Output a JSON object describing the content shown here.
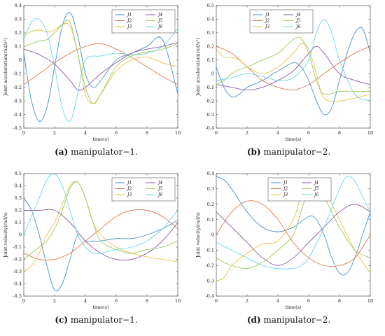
{
  "colors": {
    "J1": "#4a90c8",
    "J2": "#e07a4f",
    "J3": "#e8c24a",
    "J4": "#8e5aa8",
    "J5": "#9cc85a",
    "J6": "#6fd3ea"
  },
  "panels": [
    {
      "caption_tag": "(a)",
      "caption_text": "manipulator−1.",
      "chart_data": {
        "type": "line",
        "xlabel": "time(s)",
        "ylabel": "Joint acceleration(rad/s²)",
        "xlim": [
          0,
          10
        ],
        "ylim": [
          -0.5,
          0.4
        ],
        "xticks": [
          0,
          2,
          4,
          6,
          8,
          10
        ],
        "yticks": [
          0.4,
          0.3,
          0.2,
          0.1,
          0,
          -0.1,
          -0.2,
          -0.3,
          -0.4,
          -0.5
        ],
        "legend_position": "top-right",
        "series": [
          {
            "name": "J1",
            "x": [
              0,
              0.5,
              1,
              1.5,
              2,
              2.5,
              3,
              3.5,
              4,
              4.5,
              5,
              6,
              7,
              8,
              9,
              10
            ],
            "values": [
              0.05,
              -0.3,
              -0.45,
              -0.35,
              -0.05,
              0.25,
              0.35,
              0.18,
              -0.1,
              -0.2,
              -0.15,
              0.0,
              0.05,
              0.1,
              0.15,
              -0.25
            ]
          },
          {
            "name": "J2",
            "x": [
              0,
              1,
              2,
              3,
              4,
              5,
              6,
              7,
              8,
              9,
              10
            ],
            "values": [
              -0.18,
              -0.1,
              -0.02,
              0.05,
              0.1,
              0.12,
              0.08,
              0.02,
              -0.05,
              -0.12,
              -0.18
            ]
          },
          {
            "name": "J3",
            "x": [
              0,
              0.5,
              1,
              1.5,
              2,
              2.5,
              3,
              3.5,
              4,
              4.5,
              5,
              6,
              7,
              8,
              9,
              10
            ],
            "values": [
              0.18,
              0.21,
              0.22,
              0.21,
              0.22,
              0.26,
              0.25,
              0.05,
              -0.25,
              -0.32,
              -0.25,
              -0.08,
              0.0,
              0.02,
              -0.02,
              -0.05
            ]
          },
          {
            "name": "J4",
            "x": [
              0,
              1,
              2,
              3,
              3.5,
              4,
              5,
              6,
              7,
              8,
              9,
              10
            ],
            "values": [
              0.08,
              0.04,
              -0.03,
              -0.15,
              -0.22,
              -0.2,
              -0.1,
              -0.02,
              0.05,
              0.08,
              0.1,
              0.13
            ]
          },
          {
            "name": "J5",
            "x": [
              0,
              0.5,
              1,
              1.5,
              2,
              2.5,
              3,
              3.5,
              4,
              4.5,
              5,
              6,
              7,
              8,
              9,
              10
            ],
            "values": [
              0.1,
              0.12,
              0.14,
              0.15,
              0.2,
              0.26,
              0.28,
              0.05,
              -0.2,
              -0.32,
              -0.25,
              -0.05,
              0.03,
              0.06,
              0.08,
              0.12
            ]
          },
          {
            "name": "J6",
            "x": [
              0,
              0.5,
              1,
              1.5,
              2,
              2.5,
              3,
              3.5,
              4,
              5,
              6,
              7,
              8,
              9,
              10
            ],
            "values": [
              0.15,
              0.28,
              0.3,
              0.2,
              -0.05,
              -0.35,
              -0.45,
              -0.25,
              0.0,
              0.03,
              0.05,
              0.04,
              0.05,
              0.1,
              0.23
            ]
          }
        ]
      }
    },
    {
      "caption_tag": "(b)",
      "caption_text": "manipulator−2.",
      "chart_data": {
        "type": "line",
        "xlabel": "time(s)",
        "ylabel": "Joint acceleration(rad/s²)",
        "xlim": [
          0,
          10
        ],
        "ylim": [
          -0.4,
          0.5
        ],
        "xticks": [
          0,
          2,
          4,
          6,
          8,
          10
        ],
        "yticks": [
          0.5,
          0.4,
          0.3,
          0.2,
          0.1,
          0,
          -0.1,
          -0.2,
          -0.3,
          -0.4
        ],
        "legend_position": "top-left",
        "series": [
          {
            "name": "J1",
            "x": [
              0,
              0.5,
              1,
              1.5,
              2,
              3,
              4,
              5,
              5.5,
              6,
              6.5,
              7,
              7.5,
              8,
              8.5,
              9,
              9.5,
              10
            ],
            "values": [
              0.05,
              -0.1,
              -0.17,
              -0.15,
              -0.1,
              -0.05,
              0.02,
              0.08,
              0.05,
              -0.05,
              -0.2,
              -0.3,
              -0.25,
              -0.05,
              0.15,
              0.3,
              0.33,
              0.15
            ]
          },
          {
            "name": "J2",
            "x": [
              0,
              1,
              2,
              3,
              4,
              5,
              6,
              7,
              8,
              9,
              10
            ],
            "values": [
              0.2,
              0.15,
              0.05,
              -0.05,
              -0.1,
              -0.12,
              -0.08,
              0.0,
              0.08,
              0.15,
              0.2
            ]
          },
          {
            "name": "J3",
            "x": [
              0,
              0.5,
              1,
              1.5,
              2,
              3,
              4,
              5,
              5.5,
              6,
              6.5,
              7,
              8,
              9,
              10
            ],
            "values": [
              0.18,
              0.12,
              0.12,
              0.1,
              0.05,
              0.0,
              0.05,
              0.15,
              0.22,
              0.18,
              0.0,
              -0.18,
              -0.2,
              -0.18,
              -0.15
            ]
          },
          {
            "name": "J4",
            "x": [
              0,
              1,
              2,
              3,
              4,
              5,
              6,
              6.5,
              7,
              8,
              9,
              10
            ],
            "values": [
              -0.08,
              -0.1,
              -0.12,
              -0.1,
              -0.05,
              0.02,
              0.15,
              0.2,
              0.15,
              0.0,
              -0.05,
              -0.08
            ]
          },
          {
            "name": "J5",
            "x": [
              0,
              0.5,
              1,
              1.5,
              2,
              3,
              4,
              5,
              5.5,
              6,
              6.5,
              7,
              8,
              9,
              10
            ],
            "values": [
              -0.08,
              -0.05,
              0.0,
              0.03,
              0.05,
              0.1,
              0.15,
              0.25,
              0.26,
              0.15,
              -0.05,
              -0.15,
              -0.13,
              -0.13,
              -0.13
            ]
          },
          {
            "name": "J6",
            "x": [
              0,
              1,
              2,
              3,
              4,
              5,
              6,
              6.5,
              7,
              7.5,
              8,
              9,
              10
            ],
            "values": [
              -0.05,
              -0.03,
              0.0,
              -0.02,
              -0.05,
              -0.03,
              0.1,
              0.3,
              0.4,
              0.3,
              0.1,
              -0.15,
              -0.2
            ]
          }
        ]
      }
    },
    {
      "caption_tag": "(c)",
      "caption_text": "manipulator−1.",
      "chart_data": {
        "type": "line",
        "xlabel": "time(s)",
        "ylabel": "Joint velocity(rad/s)",
        "xlim": [
          0,
          10
        ],
        "ylim": [
          -0.5,
          0.5
        ],
        "xticks": [
          0,
          2,
          4,
          6,
          8,
          10
        ],
        "yticks": [
          0.5,
          0.4,
          0.3,
          0.2,
          0.1,
          0,
          -0.1,
          -0.2,
          -0.3,
          -0.4,
          -0.5
        ],
        "legend_position": "top-right",
        "series": [
          {
            "name": "J1",
            "x": [
              0,
              0.5,
              1,
              1.5,
              2,
              2.5,
              3,
              3.5,
              4,
              4.5,
              5,
              6,
              7,
              8,
              9,
              10
            ],
            "values": [
              0.3,
              0.2,
              0.0,
              -0.25,
              -0.45,
              -0.4,
              -0.2,
              0.0,
              -0.05,
              -0.05,
              -0.05,
              -0.03,
              -0.03,
              0.0,
              0.05,
              0.12
            ]
          },
          {
            "name": "J2",
            "x": [
              0,
              1,
              2,
              3,
              4,
              5,
              6,
              7,
              8,
              9,
              10
            ],
            "values": [
              -0.15,
              -0.2,
              -0.2,
              -0.15,
              -0.05,
              0.05,
              0.15,
              0.2,
              0.2,
              0.15,
              0.05
            ]
          },
          {
            "name": "J3",
            "x": [
              0,
              0.5,
              1,
              1.5,
              2,
              2.5,
              3,
              3.5,
              4,
              4.5,
              5,
              6,
              7,
              8,
              9,
              10
            ],
            "values": [
              -0.3,
              -0.25,
              -0.15,
              0.0,
              0.1,
              0.25,
              0.4,
              0.43,
              0.3,
              0.1,
              0.0,
              -0.1,
              -0.15,
              -0.18,
              -0.2,
              -0.22
            ]
          },
          {
            "name": "J4",
            "x": [
              0,
              1,
              2,
              3,
              4,
              5,
              6,
              7,
              8,
              9,
              10
            ],
            "values": [
              0.2,
              0.2,
              0.2,
              0.1,
              -0.05,
              -0.15,
              -0.2,
              -0.2,
              -0.15,
              -0.05,
              0.1
            ]
          },
          {
            "name": "J5",
            "x": [
              0,
              0.5,
              1,
              1.5,
              2,
              2.5,
              3,
              3.5,
              4,
              4.5,
              5,
              6,
              7,
              8,
              9,
              10
            ],
            "values": [
              -0.2,
              -0.15,
              -0.1,
              -0.05,
              0.05,
              0.2,
              0.38,
              0.43,
              0.3,
              0.1,
              -0.05,
              -0.12,
              -0.15,
              -0.12,
              -0.1,
              -0.05
            ]
          },
          {
            "name": "J6",
            "x": [
              0,
              0.5,
              1,
              1.5,
              2,
              2.5,
              3,
              3.5,
              4,
              4.5,
              5,
              6,
              7,
              8,
              9,
              10
            ],
            "values": [
              0.0,
              0.15,
              0.3,
              0.45,
              0.5,
              0.4,
              0.2,
              0.0,
              -0.1,
              -0.15,
              -0.15,
              -0.12,
              -0.1,
              -0.05,
              0.05,
              0.2
            ]
          }
        ]
      }
    },
    {
      "caption_tag": "(d)",
      "caption_text": "manipulator−2.",
      "chart_data": {
        "type": "line",
        "xlabel": "time(s)",
        "ylabel": "Joint velocity(rad/s)",
        "xlim": [
          0,
          10
        ],
        "ylim": [
          -0.4,
          0.4
        ],
        "xticks": [
          0,
          2,
          4,
          6,
          8,
          10
        ],
        "yticks": [
          0.4,
          0.3,
          0.2,
          0.1,
          0,
          -0.1,
          -0.2,
          -0.3,
          -0.4
        ],
        "legend_position": "top-center",
        "series": [
          {
            "name": "J1",
            "x": [
              0,
              0.5,
              1,
              2,
              3,
              4,
              5,
              6,
              6.5,
              7,
              7.5,
              8,
              8.5,
              9,
              9.5,
              10
            ],
            "values": [
              0.38,
              0.36,
              0.3,
              0.15,
              0.05,
              0.02,
              0.05,
              0.12,
              0.1,
              0.0,
              -0.15,
              -0.25,
              -0.25,
              -0.15,
              0.0,
              0.15
            ]
          },
          {
            "name": "J2",
            "x": [
              0,
              1,
              2,
              3,
              4,
              5,
              6,
              7,
              8,
              9,
              10
            ],
            "values": [
              0.0,
              0.15,
              0.22,
              0.2,
              0.1,
              -0.05,
              -0.15,
              -0.2,
              -0.2,
              -0.15,
              0.0
            ]
          },
          {
            "name": "J3",
            "x": [
              0,
              0.5,
              1,
              2,
              3,
              4,
              5,
              5.5,
              6,
              6.5,
              7,
              8,
              9,
              10
            ],
            "values": [
              -0.3,
              -0.28,
              -0.2,
              -0.12,
              -0.06,
              -0.04,
              0.1,
              0.25,
              0.33,
              0.35,
              0.3,
              0.1,
              -0.1,
              -0.25
            ]
          },
          {
            "name": "J4",
            "x": [
              0,
              1,
              2,
              3,
              4,
              5,
              6,
              7,
              8,
              9,
              10
            ],
            "values": [
              0.15,
              0.05,
              -0.05,
              -0.15,
              -0.2,
              -0.15,
              -0.05,
              0.05,
              0.15,
              0.2,
              0.15
            ]
          },
          {
            "name": "J5",
            "x": [
              0,
              0.5,
              1,
              2,
              3,
              4,
              5,
              5.5,
              6,
              6.5,
              7,
              8,
              9,
              10
            ],
            "values": [
              -0.15,
              -0.18,
              -0.2,
              -0.22,
              -0.18,
              -0.1,
              0.0,
              0.15,
              0.3,
              0.33,
              0.25,
              0.05,
              -0.1,
              -0.15
            ]
          },
          {
            "name": "J6",
            "x": [
              0,
              1,
              2,
              3,
              4,
              5,
              5.5,
              6,
              7,
              8,
              8.5,
              9,
              9.5,
              10
            ],
            "values": [
              -0.05,
              -0.1,
              -0.15,
              -0.2,
              -0.22,
              -0.22,
              -0.2,
              -0.15,
              0.05,
              0.3,
              0.38,
              0.35,
              0.25,
              0.15
            ]
          }
        ]
      }
    }
  ]
}
